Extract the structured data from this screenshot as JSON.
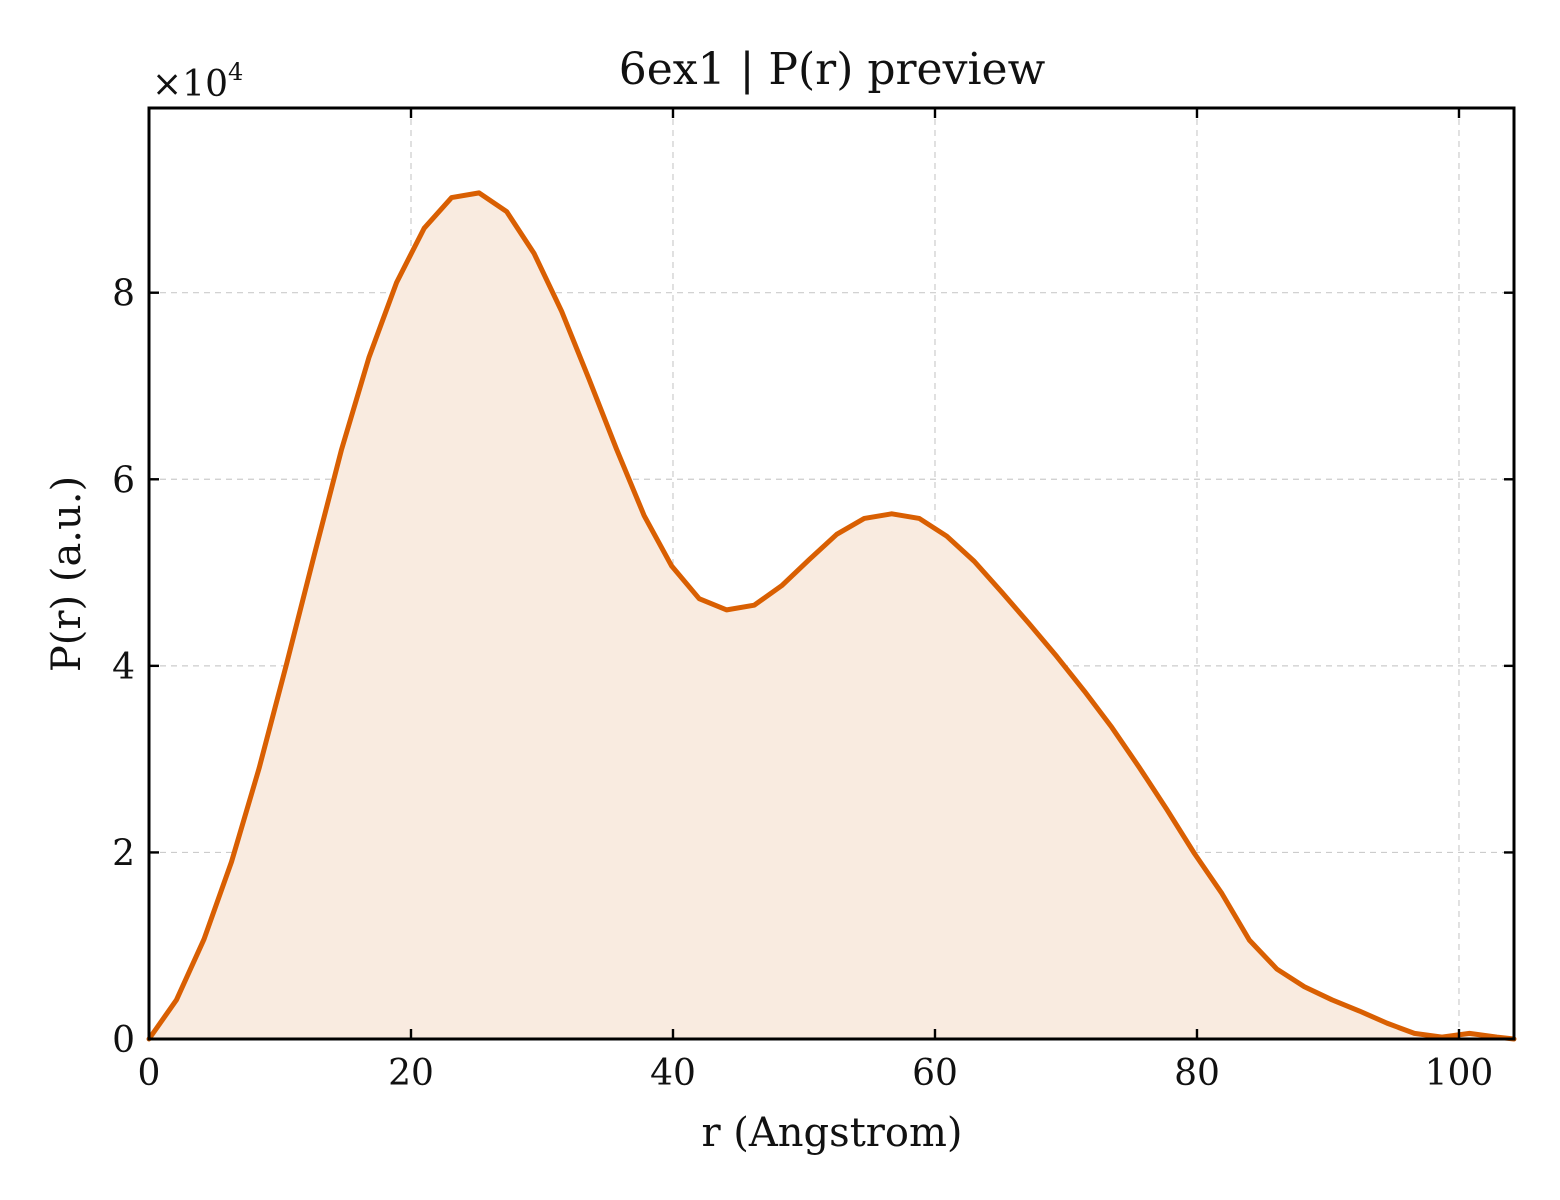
{
  "chart_data": {
    "type": "area",
    "title": "6ex1 | P(r) preview",
    "xlabel": "r (Angstrom)",
    "ylabel": "P(r) (a.u.)",
    "y_multiplier_label": "×10",
    "y_multiplier_exponent": "4",
    "xlim": [
      0,
      104.2
    ],
    "ylim": [
      0,
      9.98
    ],
    "x_ticks": [
      0,
      20,
      40,
      60,
      80,
      100
    ],
    "x_tick_labels": [
      "0",
      "20",
      "40",
      "60",
      "80",
      "100"
    ],
    "y_ticks": [
      0,
      2,
      4,
      6,
      8
    ],
    "y_tick_labels": [
      "0",
      "2",
      "4",
      "6",
      "8"
    ],
    "grid": true,
    "line_color": "#d95f02",
    "fill_color": "#f9ebe0",
    "series": [
      {
        "x": [
          0,
          2.1,
          4.2,
          6.3,
          8.4,
          10.5,
          12.6,
          14.7,
          16.8,
          18.9,
          21.0,
          23.1,
          25.2,
          27.3,
          29.4,
          31.5,
          33.6,
          35.7,
          37.8,
          39.9,
          42.0,
          44.1,
          46.2,
          48.3,
          50.4,
          52.5,
          54.6,
          56.7,
          58.8,
          60.9,
          63.0,
          65.1,
          67.2,
          69.3,
          71.4,
          73.5,
          75.6,
          77.7,
          79.8,
          81.9,
          84.0,
          86.1,
          88.2,
          90.3,
          92.4,
          94.5,
          96.6,
          98.7,
          100.8,
          102.9,
          104.2
        ],
        "y": [
          0.0,
          0.42,
          1.07,
          1.9,
          2.9,
          4.02,
          5.18,
          6.32,
          7.31,
          8.11,
          8.69,
          9.02,
          9.07,
          8.87,
          8.42,
          7.8,
          7.07,
          6.32,
          5.61,
          5.07,
          4.72,
          4.6,
          4.65,
          4.86,
          5.14,
          5.41,
          5.58,
          5.63,
          5.58,
          5.39,
          5.12,
          4.79,
          4.45,
          4.1,
          3.73,
          3.34,
          2.91,
          2.46,
          1.99,
          1.56,
          1.06,
          0.75,
          0.56,
          0.42,
          0.3,
          0.17,
          0.06,
          0.02,
          0.06,
          0.02,
          0.0
        ]
      }
    ]
  }
}
